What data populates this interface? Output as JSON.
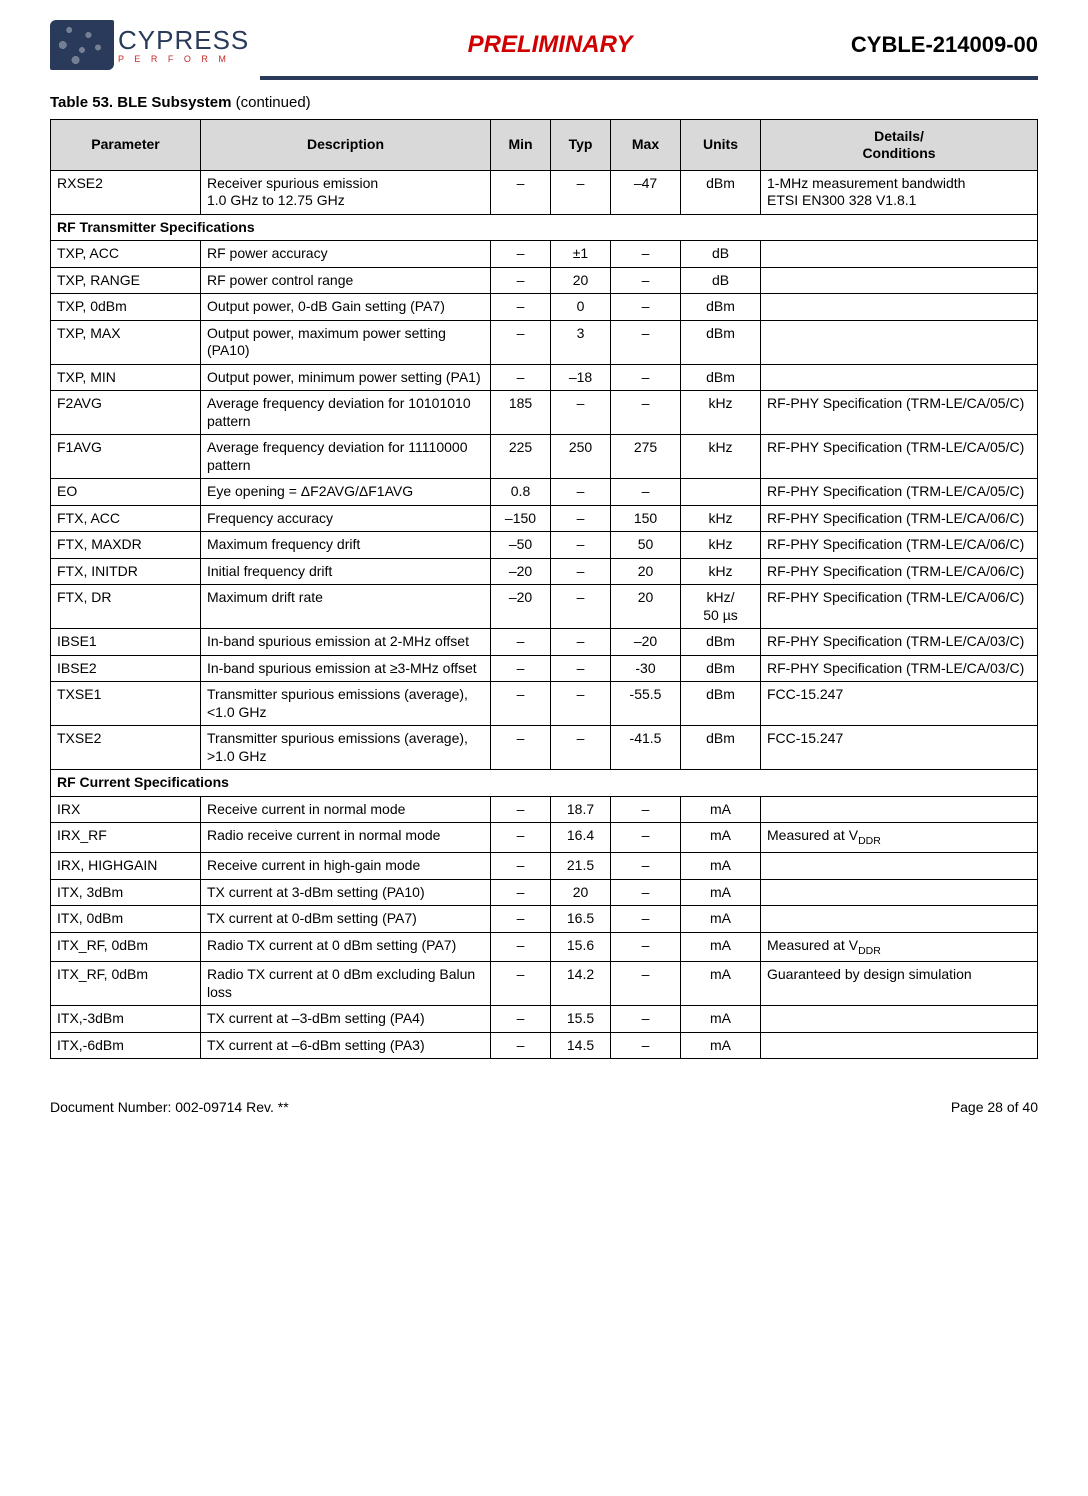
{
  "header": {
    "brand": "CYPRESS",
    "tagline": "P E R F O R M",
    "center_title": "PRELIMINARY",
    "part_number": "CYBLE-214009-00"
  },
  "table": {
    "caption_prefix": "Table 53.  BLE Subsystem ",
    "caption_suffix": "(continued)",
    "headers": {
      "parameter": "Parameter",
      "description": "Description",
      "min": "Min",
      "typ": "Typ",
      "max": "Max",
      "units": "Units",
      "details": "Details/\nConditions"
    },
    "rows": [
      {
        "param": "RXSE2",
        "desc": "Receiver spurious emission\n1.0 GHz to 12.75 GHz",
        "min": "–",
        "typ": "–",
        "max": "–47",
        "units": "dBm",
        "details": "1-MHz measurement bandwidth\nETSI EN300 328 V1.8.1"
      },
      {
        "section": "RF Transmitter Specifications"
      },
      {
        "param": "TXP, ACC",
        "desc": "RF power accuracy",
        "min": "–",
        "typ": "±1",
        "max": "–",
        "units": "dB",
        "details": ""
      },
      {
        "param": "TXP, RANGE",
        "desc": "RF power control range",
        "min": "–",
        "typ": "20",
        "max": "–",
        "units": "dB",
        "details": ""
      },
      {
        "param": "TXP, 0dBm",
        "desc": "Output power, 0-dB Gain setting (PA7)",
        "min": "–",
        "typ": "0",
        "max": "–",
        "units": "dBm",
        "details": ""
      },
      {
        "param": "TXP, MAX",
        "desc": "Output power, maximum power setting (PA10)",
        "min": "–",
        "typ": "3",
        "max": "–",
        "units": "dBm",
        "details": ""
      },
      {
        "param": "TXP, MIN",
        "desc": "Output power, minimum power setting (PA1)",
        "min": "–",
        "typ": "–18",
        "max": "–",
        "units": "dBm",
        "details": ""
      },
      {
        "param": "F2AVG",
        "desc": "Average frequency deviation for 10101010 pattern",
        "min": "185",
        "typ": "–",
        "max": "–",
        "units": "kHz",
        "details": "RF-PHY Specification (TRM-LE/CA/05/C)"
      },
      {
        "param": "F1AVG",
        "desc": "Average frequency deviation for 11110000 pattern",
        "min": "225",
        "typ": "250",
        "max": "275",
        "units": "kHz",
        "details": "RF-PHY Specification (TRM-LE/CA/05/C)"
      },
      {
        "param": "EO",
        "desc": "Eye opening = ΔF2AVG/ΔF1AVG",
        "min": "0.8",
        "typ": "–",
        "max": "–",
        "units": "",
        "details": "RF-PHY Specification (TRM-LE/CA/05/C)"
      },
      {
        "param": "FTX, ACC",
        "desc": "Frequency accuracy",
        "min": "–150",
        "typ": "–",
        "max": "150",
        "units": "kHz",
        "details": "RF-PHY Specification (TRM-LE/CA/06/C)"
      },
      {
        "param": "FTX, MAXDR",
        "desc": "Maximum frequency drift",
        "min": "–50",
        "typ": "–",
        "max": "50",
        "units": "kHz",
        "details": "RF-PHY Specification (TRM-LE/CA/06/C)"
      },
      {
        "param": "FTX, INITDR",
        "desc": "Initial frequency drift",
        "min": "–20",
        "typ": "–",
        "max": "20",
        "units": "kHz",
        "details": "RF-PHY Specification (TRM-LE/CA/06/C)"
      },
      {
        "param": "FTX, DR",
        "desc": "Maximum drift rate",
        "min": "–20",
        "typ": "–",
        "max": "20",
        "units": "kHz/\n50 µs",
        "details": "RF-PHY Specification (TRM-LE/CA/06/C)"
      },
      {
        "param": "IBSE1",
        "desc": "In-band spurious emission at 2-MHz offset",
        "min": "–",
        "typ": "–",
        "max": "–20",
        "units": "dBm",
        "details": "RF-PHY Specification (TRM-LE/CA/03/C)"
      },
      {
        "param": "IBSE2",
        "desc": "In-band spurious emission at ≥3-MHz offset",
        "min": "–",
        "typ": "–",
        "max": "-30",
        "units": "dBm",
        "details": "RF-PHY Specification (TRM-LE/CA/03/C)"
      },
      {
        "param": "TXSE1",
        "desc": "Transmitter spurious emissions (average), <1.0 GHz",
        "min": "–",
        "typ": "–",
        "max": "-55.5",
        "units": "dBm",
        "details": "FCC-15.247"
      },
      {
        "param": "TXSE2",
        "desc": "Transmitter spurious emissions (average), >1.0 GHz",
        "min": "–",
        "typ": "–",
        "max": "-41.5",
        "units": "dBm",
        "details": "FCC-15.247"
      },
      {
        "section": "RF Current Specifications"
      },
      {
        "param": "IRX",
        "desc": "Receive current in normal mode",
        "min": "–",
        "typ": "18.7",
        "max": "–",
        "units": "mA",
        "details": ""
      },
      {
        "param": "IRX_RF",
        "desc": "Radio receive current in normal mode",
        "min": "–",
        "typ": "16.4",
        "max": "–",
        "units": "mA",
        "details_html": "Measured at V<sub>DDR</sub>"
      },
      {
        "param": "IRX, HIGHGAIN",
        "desc": "Receive current in high-gain mode",
        "min": "–",
        "typ": "21.5",
        "max": "–",
        "units": "mA",
        "details": ""
      },
      {
        "param": "ITX, 3dBm",
        "desc": "TX current at 3-dBm setting (PA10)",
        "min": "–",
        "typ": "20",
        "max": "–",
        "units": "mA",
        "details": ""
      },
      {
        "param": "ITX, 0dBm",
        "desc": "TX current at 0-dBm setting (PA7)",
        "min": "–",
        "typ": "16.5",
        "max": "–",
        "units": "mA",
        "details": ""
      },
      {
        "param": "ITX_RF, 0dBm",
        "desc": "Radio TX current at 0 dBm setting (PA7)",
        "min": "–",
        "typ": "15.6",
        "max": "–",
        "units": "mA",
        "details_html": "Measured at V<sub>DDR</sub>"
      },
      {
        "param": "ITX_RF, 0dBm",
        "desc": "Radio TX current at 0 dBm excluding Balun loss",
        "min": "–",
        "typ": "14.2",
        "max": "–",
        "units": "mA",
        "details": "Guaranteed by design simulation"
      },
      {
        "param": "ITX,-3dBm",
        "desc": "TX current at –3-dBm setting (PA4)",
        "min": "–",
        "typ": "15.5",
        "max": "–",
        "units": "mA",
        "details": ""
      },
      {
        "param": "ITX,-6dBm",
        "desc": "TX current at –6-dBm setting (PA3)",
        "min": "–",
        "typ": "14.5",
        "max": "–",
        "units": "mA",
        "details": ""
      }
    ]
  },
  "footer": {
    "left": "Document Number: 002-09714 Rev. **",
    "right": "Page 28 of 40"
  }
}
